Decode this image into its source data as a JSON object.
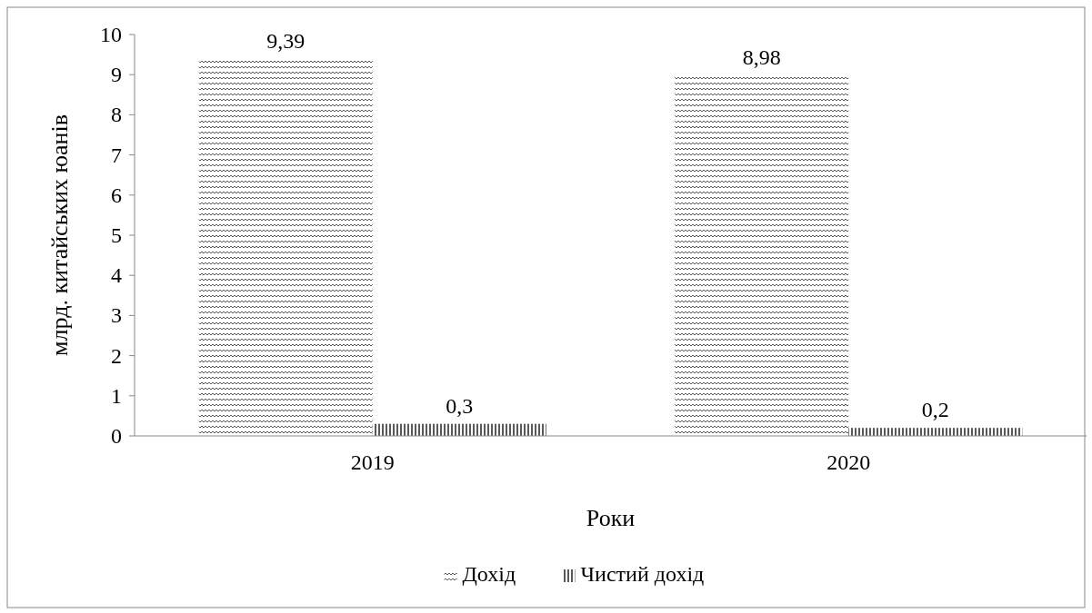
{
  "chart_data": {
    "type": "bar",
    "xlabel": "Роки",
    "ylabel": "млрд. китайських юанів",
    "categories": [
      "2019",
      "2020"
    ],
    "series": [
      {
        "name": "Дохід",
        "color": "#595959",
        "values": [
          9.39,
          8.98
        ],
        "value_labels": [
          "9,39",
          "8,98"
        ]
      },
      {
        "name": "Чистий дохід",
        "color": "#595959",
        "values": [
          0.3,
          0.2
        ],
        "value_labels": [
          "0,3",
          "0,2"
        ]
      }
    ],
    "ylim": [
      0,
      10
    ],
    "yticks": [
      0,
      1,
      2,
      3,
      4,
      5,
      6,
      7,
      8,
      9,
      10
    ],
    "grid": false,
    "legend": "bottom"
  }
}
